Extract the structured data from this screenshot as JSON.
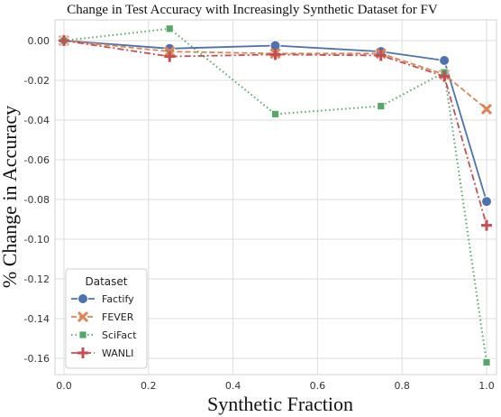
{
  "chart_data": {
    "type": "line",
    "title": "Change in Test Accuracy with Increasingly Synthetic Dataset for FV",
    "xlabel": "Synthetic Fraction",
    "ylabel": "% Change in Accuracy",
    "xlim": [
      0.0,
      1.0
    ],
    "ylim": [
      -0.165,
      0.01
    ],
    "xticks": [
      "0.0",
      "0.2",
      "0.4",
      "0.6",
      "0.8",
      "1.0"
    ],
    "yticks": [
      "0.00",
      "-0.02",
      "-0.04",
      "-0.06",
      "-0.08",
      "-0.10",
      "-0.12",
      "-0.14",
      "-0.16"
    ],
    "grid": true,
    "legend": {
      "title": "Dataset",
      "placement": "bottom-left"
    },
    "series": [
      {
        "name": "Factify",
        "color": "#4c72b0",
        "marker": "circle",
        "linestyle": "solid",
        "x": [
          0.0,
          0.25,
          0.5,
          0.75,
          0.9,
          1.0
        ],
        "y": [
          0.0,
          -0.004,
          -0.0025,
          -0.0055,
          -0.01,
          -0.081
        ]
      },
      {
        "name": "FEVER",
        "color": "#dd8452",
        "marker": "x",
        "linestyle": "dashed",
        "x": [
          0.0,
          0.25,
          0.5,
          0.75,
          0.9,
          1.0
        ],
        "y": [
          0.0,
          -0.0055,
          -0.0065,
          -0.0065,
          -0.017,
          -0.0345
        ]
      },
      {
        "name": "SciFact",
        "color": "#55a868",
        "marker": "square",
        "linestyle": "dotted",
        "x": [
          0.0,
          0.25,
          0.5,
          0.75,
          0.9,
          1.0
        ],
        "y": [
          0.0,
          0.006,
          -0.037,
          -0.033,
          -0.016,
          -0.162
        ]
      },
      {
        "name": "WANLI",
        "color": "#c44e52",
        "marker": "plus",
        "linestyle": "dashdot",
        "x": [
          0.0,
          0.25,
          0.5,
          0.75,
          0.9,
          1.0
        ],
        "y": [
          0.0,
          -0.008,
          -0.007,
          -0.0075,
          -0.018,
          -0.093
        ]
      }
    ]
  }
}
